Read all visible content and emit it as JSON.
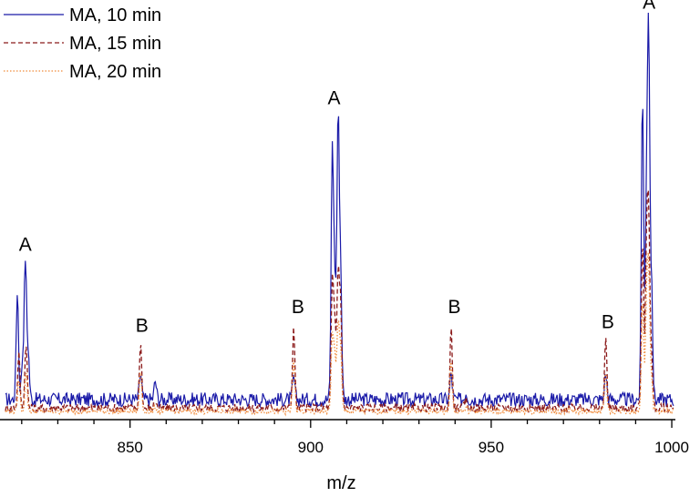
{
  "chart_data": {
    "type": "line",
    "xlabel": "m/z",
    "ylabel": "",
    "xlim": [
      815,
      1001
    ],
    "ylim": [
      0,
      100
    ],
    "x_ticks": [
      "850",
      "900",
      "950",
      "1000"
    ],
    "legend_position": "top-left",
    "grid": false,
    "series": [
      {
        "name": "MA, 10 min",
        "color": "#1a1aa8",
        "style": "solid",
        "baseline": 5.5,
        "peaks": [
          [
            818.8,
            30
          ],
          [
            820.2,
            10
          ],
          [
            821,
            38
          ],
          [
            821.8,
            13
          ],
          [
            852.9,
            7
          ],
          [
            857,
            5
          ],
          [
            895.3,
            6
          ],
          [
            906,
            68
          ],
          [
            906.7,
            30
          ],
          [
            907.6,
            76
          ],
          [
            908.3,
            34
          ],
          [
            938.9,
            7
          ],
          [
            943,
            2
          ],
          [
            981.7,
            7
          ],
          [
            991.9,
            84
          ],
          [
            993,
            51
          ],
          [
            993.6,
            95
          ],
          [
            994.4,
            30
          ]
        ]
      },
      {
        "name": "MA, 15 min",
        "color": "#8b1a1a",
        "style": "dashed",
        "baseline": 3.2,
        "peaks": [
          [
            819.2,
            15
          ],
          [
            821.2,
            18
          ],
          [
            852.9,
            18
          ],
          [
            857,
            2
          ],
          [
            895.3,
            22
          ],
          [
            906,
            34
          ],
          [
            906.7,
            22
          ],
          [
            907.6,
            36
          ],
          [
            908.3,
            28
          ],
          [
            938.9,
            22
          ],
          [
            943,
            2
          ],
          [
            981.7,
            19
          ],
          [
            991.9,
            46
          ],
          [
            993,
            42
          ],
          [
            993.6,
            50
          ],
          [
            994.4,
            14
          ]
        ]
      },
      {
        "name": "MA, 20 min",
        "color": "#f08c3c",
        "style": "dotted",
        "baseline": 2.3,
        "peaks": [
          [
            819.2,
            9
          ],
          [
            821.2,
            11
          ],
          [
            852.9,
            11
          ],
          [
            857,
            1
          ],
          [
            895.3,
            14
          ],
          [
            906,
            21
          ],
          [
            906.7,
            14
          ],
          [
            907.6,
            24
          ],
          [
            908.3,
            16
          ],
          [
            938.9,
            14
          ],
          [
            943,
            1
          ],
          [
            981.7,
            11
          ],
          [
            991.9,
            31
          ],
          [
            993,
            28
          ],
          [
            993.6,
            36
          ],
          [
            994.4,
            9
          ]
        ]
      }
    ],
    "annotations": [
      {
        "text": "A",
        "x": 821,
        "y": 46
      },
      {
        "text": "B",
        "x": 853.3,
        "y": 24
      },
      {
        "text": "B",
        "x": 896.5,
        "y": 29
      },
      {
        "text": "A",
        "x": 906.5,
        "y": 86
      },
      {
        "text": "B",
        "x": 939.8,
        "y": 29
      },
      {
        "text": "B",
        "x": 982.3,
        "y": 25
      },
      {
        "text": "A",
        "x": 993.7,
        "y": 112
      }
    ]
  }
}
